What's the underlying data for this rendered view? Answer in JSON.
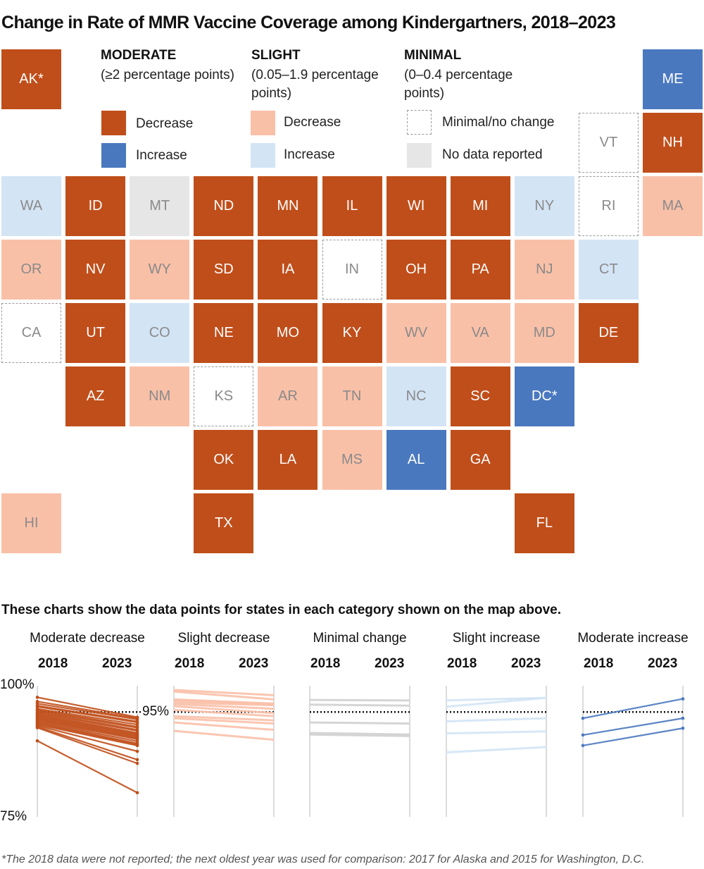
{
  "title": "Change in Rate of MMR Vaccine Coverage among Kindergartners, 2018–2023",
  "colors": {
    "moderate_decrease": "#c04e1a",
    "moderate_increase": "#4a78bf",
    "slight_decrease": "#f9c0a8",
    "slight_increase": "#d3e4f5",
    "minimal": "#ffffff",
    "no_data": "#e6e6e6",
    "reference_line": "#111111"
  },
  "legend": {
    "moderate": {
      "heading": "MODERATE",
      "range": "(≥2 percentage points)",
      "decrease": "Decrease",
      "increase": "Increase"
    },
    "slight": {
      "heading": "SLIGHT",
      "range": "(0.05–1.9 percentage points)",
      "decrease": "Decrease",
      "increase": "Increase"
    },
    "minimal": {
      "heading": "MINIMAL",
      "range": "(0–0.4 percentage points)",
      "minimal": "Minimal/no change",
      "no_data": "No data reported"
    }
  },
  "map": {
    "states": [
      {
        "label": "AK*",
        "category": "moderate_decrease"
      },
      {
        "label": "ME",
        "category": "moderate_increase"
      },
      {
        "label": "VT",
        "category": "minimal"
      },
      {
        "label": "NH",
        "category": "moderate_decrease"
      },
      {
        "label": "WA",
        "category": "slight_increase"
      },
      {
        "label": "ID",
        "category": "moderate_decrease"
      },
      {
        "label": "MT",
        "category": "no_data"
      },
      {
        "label": "ND",
        "category": "moderate_decrease"
      },
      {
        "label": "MN",
        "category": "moderate_decrease"
      },
      {
        "label": "IL",
        "category": "moderate_decrease"
      },
      {
        "label": "WI",
        "category": "moderate_decrease"
      },
      {
        "label": "MI",
        "category": "moderate_decrease"
      },
      {
        "label": "NY",
        "category": "slight_increase"
      },
      {
        "label": "RI",
        "category": "minimal"
      },
      {
        "label": "MA",
        "category": "slight_decrease"
      },
      {
        "label": "OR",
        "category": "slight_decrease"
      },
      {
        "label": "NV",
        "category": "moderate_decrease"
      },
      {
        "label": "WY",
        "category": "slight_decrease"
      },
      {
        "label": "SD",
        "category": "moderate_decrease"
      },
      {
        "label": "IA",
        "category": "moderate_decrease"
      },
      {
        "label": "IN",
        "category": "minimal"
      },
      {
        "label": "OH",
        "category": "moderate_decrease"
      },
      {
        "label": "PA",
        "category": "moderate_decrease"
      },
      {
        "label": "NJ",
        "category": "slight_decrease"
      },
      {
        "label": "CT",
        "category": "slight_increase"
      },
      {
        "label": "CA",
        "category": "minimal"
      },
      {
        "label": "UT",
        "category": "moderate_decrease"
      },
      {
        "label": "CO",
        "category": "slight_increase"
      },
      {
        "label": "NE",
        "category": "moderate_decrease"
      },
      {
        "label": "MO",
        "category": "moderate_decrease"
      },
      {
        "label": "KY",
        "category": "moderate_decrease"
      },
      {
        "label": "WV",
        "category": "slight_decrease"
      },
      {
        "label": "VA",
        "category": "slight_decrease"
      },
      {
        "label": "MD",
        "category": "slight_decrease"
      },
      {
        "label": "DE",
        "category": "moderate_decrease"
      },
      {
        "label": "AZ",
        "category": "moderate_decrease"
      },
      {
        "label": "NM",
        "category": "slight_decrease"
      },
      {
        "label": "KS",
        "category": "minimal"
      },
      {
        "label": "AR",
        "category": "slight_decrease"
      },
      {
        "label": "TN",
        "category": "slight_decrease"
      },
      {
        "label": "NC",
        "category": "slight_increase"
      },
      {
        "label": "SC",
        "category": "moderate_decrease"
      },
      {
        "label": "DC*",
        "category": "moderate_increase"
      },
      {
        "label": "OK",
        "category": "moderate_decrease"
      },
      {
        "label": "LA",
        "category": "moderate_decrease"
      },
      {
        "label": "MS",
        "category": "slight_decrease"
      },
      {
        "label": "AL",
        "category": "moderate_increase"
      },
      {
        "label": "GA",
        "category": "moderate_decrease"
      },
      {
        "label": "HI",
        "category": "slight_decrease"
      },
      {
        "label": "TX",
        "category": "moderate_decrease"
      },
      {
        "label": "FL",
        "category": "moderate_decrease"
      }
    ]
  },
  "charts_subhead": "These charts show the data points for states in each category shown on the map above.",
  "chart_data": {
    "type": "line",
    "subtype": "slope",
    "x": [
      "2018",
      "2023"
    ],
    "ylim": [
      75,
      100
    ],
    "y_tick_labels": [
      "100%",
      "75%"
    ],
    "reference_line": {
      "value": 95,
      "label": "95%",
      "style": "dotted"
    },
    "panels": [
      {
        "title": "Moderate decrease",
        "category": "moderate_decrease",
        "series": [
          [
            97.8,
            94.0
          ],
          [
            97.0,
            93.8
          ],
          [
            96.6,
            93.6
          ],
          [
            96.2,
            93.2
          ],
          [
            96.0,
            93.0
          ],
          [
            95.6,
            92.6
          ],
          [
            95.4,
            92.2
          ],
          [
            95.2,
            92.0
          ],
          [
            95.0,
            91.6
          ],
          [
            94.8,
            91.4
          ],
          [
            94.6,
            91.0
          ],
          [
            94.4,
            90.8
          ],
          [
            94.2,
            90.6
          ],
          [
            94.0,
            90.4
          ],
          [
            93.8,
            90.2
          ],
          [
            93.6,
            90.0
          ],
          [
            93.4,
            89.8
          ],
          [
            93.2,
            89.4
          ],
          [
            93.0,
            89.0
          ],
          [
            92.8,
            88.8
          ],
          [
            92.6,
            88.6
          ],
          [
            92.4,
            87.5
          ],
          [
            92.2,
            85.9
          ],
          [
            92.0,
            85.2
          ],
          [
            89.5,
            79.6
          ]
        ]
      },
      {
        "title": "Slight decrease",
        "category": "slight_decrease",
        "series": [
          [
            99.2,
            98.2
          ],
          [
            98.9,
            97.4
          ],
          [
            97.4,
            96.6
          ],
          [
            97.2,
            96.4
          ],
          [
            96.8,
            96.3
          ],
          [
            96.5,
            95.6
          ],
          [
            96.1,
            94.8
          ],
          [
            95.4,
            94.2
          ],
          [
            94.2,
            93.4
          ],
          [
            93.8,
            92.8
          ],
          [
            93.0,
            91.6
          ],
          [
            91.4,
            89.7
          ]
        ]
      },
      {
        "title": "Minimal change",
        "category": "minimal",
        "series": [
          [
            97.3,
            97.2
          ],
          [
            96.4,
            96.2
          ],
          [
            93.0,
            92.8
          ],
          [
            91.0,
            90.7
          ],
          [
            90.7,
            90.4
          ]
        ]
      },
      {
        "title": "Slight increase",
        "category": "slight_increase",
        "series": [
          [
            97.2,
            97.7
          ],
          [
            96.0,
            97.7
          ],
          [
            93.2,
            93.8
          ],
          [
            90.9,
            91.3
          ],
          [
            87.3,
            88.3
          ]
        ]
      },
      {
        "title": "Moderate increase",
        "category": "moderate_increase",
        "series": [
          [
            93.8,
            97.5
          ],
          [
            90.6,
            93.8
          ],
          [
            88.6,
            91.9
          ]
        ]
      }
    ]
  },
  "footnote": "*The 2018 data were not reported; the next oldest year was used for comparison: 2017 for Alaska and 2015 for Washington, D.C."
}
